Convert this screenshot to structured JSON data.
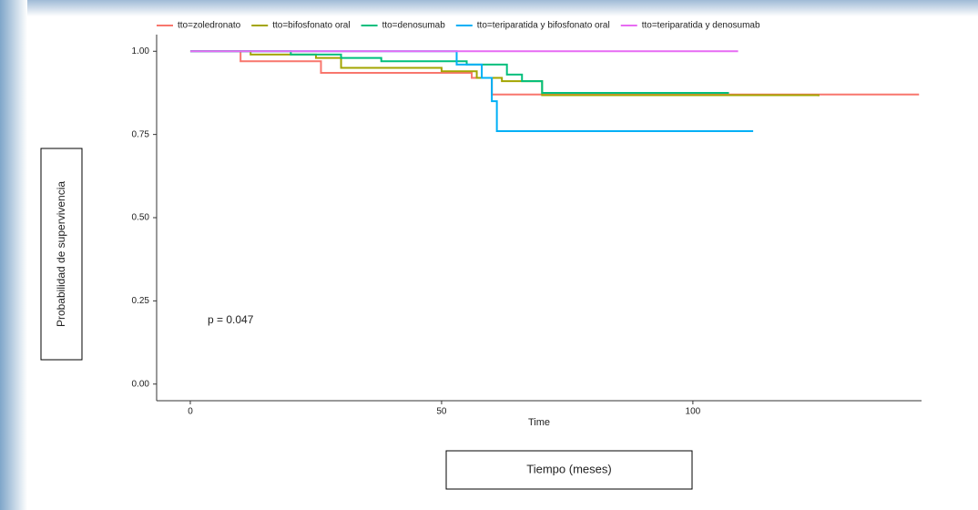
{
  "chart_data": {
    "type": "step",
    "x_label": "Time",
    "y_label": "Probabilidad de supervivencia",
    "x_axis_box_label": "Tiempo (meses)",
    "annotation": "p = 0.047",
    "xlim": [
      -6.7,
      145.5
    ],
    "ylim": [
      -0.05,
      1.05
    ],
    "xticks": [
      0,
      50,
      100
    ],
    "yticks": [
      {
        "value": 0,
        "label": "0.00"
      },
      {
        "value": 0.25,
        "label": "0.25"
      },
      {
        "value": 0.5,
        "label": "0.50"
      },
      {
        "value": 0.75,
        "label": "0.75"
      },
      {
        "value": 1,
        "label": "1.00"
      }
    ],
    "grid": false,
    "series": [
      {
        "name": "tto=zoledronato",
        "color": "#F8766D",
        "x": [
          0,
          10,
          26,
          56,
          60,
          145
        ],
        "values": [
          1,
          0.97,
          0.935,
          0.92,
          0.87,
          0.87
        ]
      },
      {
        "name": "tto=bifosfonato oral",
        "color": "#A3A500",
        "x": [
          0,
          12,
          25,
          30,
          50,
          57,
          62,
          70,
          125
        ],
        "values": [
          1,
          0.99,
          0.98,
          0.95,
          0.94,
          0.92,
          0.91,
          0.868,
          0.865
        ]
      },
      {
        "name": "tto=denosumab",
        "color": "#00BF7D",
        "x": [
          0,
          20,
          30,
          38,
          55,
          63,
          66,
          70,
          107
        ],
        "values": [
          1,
          0.99,
          0.98,
          0.97,
          0.96,
          0.93,
          0.91,
          0.875,
          0.872
        ]
      },
      {
        "name": "tto=teriparatida y bifosfonato oral",
        "color": "#00B0F6",
        "x": [
          0,
          53,
          58,
          60,
          61,
          112
        ],
        "values": [
          1,
          0.96,
          0.92,
          0.85,
          0.76,
          0.76
        ]
      },
      {
        "name": "tto=teriparatida y denosumab",
        "color": "#E76BF3",
        "x": [
          0,
          109
        ],
        "values": [
          1,
          1
        ]
      }
    ]
  }
}
